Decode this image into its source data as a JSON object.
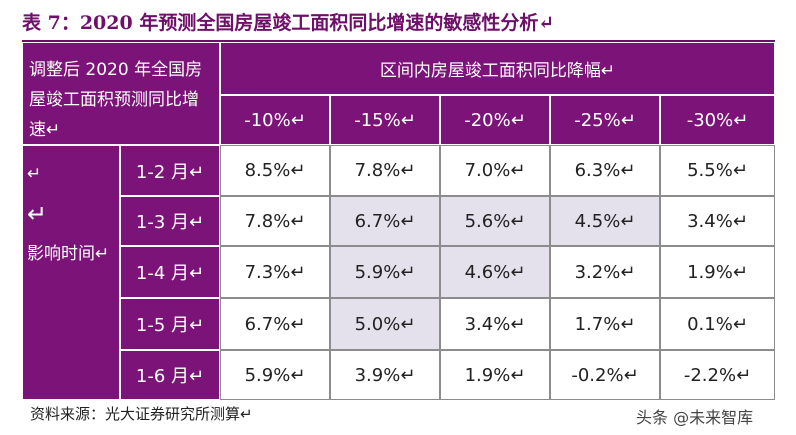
{
  "title": "表 7：2020 年预测全国房屋竣工面积同比增速的敏感性分析↵",
  "table": {
    "corner_header": "调整后 2020 年全国房屋竣工面积预测同比增速↵",
    "group_header": "区间内房屋竣工面积同比降幅↵",
    "columns": [
      "-10%↵",
      "-15%↵",
      "-20%↵",
      "-25%↵",
      "-30%↵"
    ],
    "row_group": [
      "↵",
      "↵",
      "影响时间↵"
    ],
    "rows": [
      {
        "label": "1-2 月↵",
        "values": [
          "8.5%↵",
          "7.8%↵",
          "7.0%↵",
          "6.3%↵",
          "5.5%↵"
        ]
      },
      {
        "label": "1-3 月↵",
        "values": [
          "7.8%↵",
          "6.7%↵",
          "5.6%↵",
          "4.5%↵",
          "3.4%↵"
        ]
      },
      {
        "label": "1-4 月↵",
        "values": [
          "7.3%↵",
          "5.9%↵",
          "4.6%↵",
          "3.2%↵",
          "1.9%↵"
        ]
      },
      {
        "label": "1-5 月↵",
        "values": [
          "6.7%↵",
          "5.0%↵",
          "3.4%↵",
          "1.7%↵",
          "0.1%↵"
        ]
      },
      {
        "label": "1-6 月↵",
        "values": [
          "5.9%↵",
          "3.9%↵",
          "1.9%↵",
          "-0.2%↵",
          "-2.2%↵"
        ]
      }
    ]
  },
  "source": "资料来源：光大证券研究所测算↵",
  "watermark": "头条 @未来智库"
}
